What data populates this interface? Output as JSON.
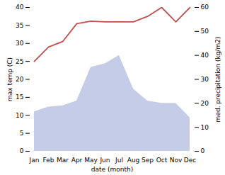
{
  "chart_data": {
    "type": "line",
    "categories": [
      "Jan",
      "Feb",
      "Mar",
      "Apr",
      "May",
      "Jun",
      "Jul",
      "Aug",
      "Sep",
      "Oct",
      "Nov",
      "Dec"
    ],
    "xlabel": "date (month)",
    "ylabel": "max temp (C)",
    "y2label": "med. precipitation (kg/m2)",
    "ylim": [
      0,
      40
    ],
    "yticks": [
      0,
      5,
      10,
      15,
      20,
      25,
      30,
      35,
      40
    ],
    "y2lim": [
      0,
      60
    ],
    "y2ticks": [
      0,
      10,
      20,
      30,
      40,
      50,
      60
    ],
    "series": [
      {
        "type": "area",
        "axis": "y2",
        "color": "#c5cce8",
        "values": [
          16.5,
          18.5,
          19.0,
          21.0,
          35.0,
          36.5,
          40.0,
          26.0,
          21.0,
          20.0,
          20.0,
          14.0
        ]
      },
      {
        "type": "line",
        "color": "#c0504d",
        "values": [
          25.0,
          29.0,
          30.5,
          35.5,
          36.2,
          36.0,
          36.0,
          36.0,
          37.5,
          40.0,
          36.0,
          40.0
        ]
      }
    ]
  }
}
